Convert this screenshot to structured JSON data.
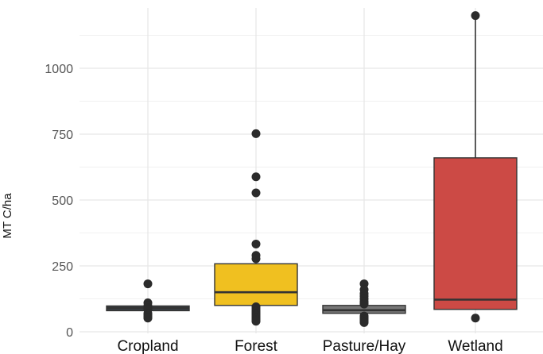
{
  "chart_data": {
    "type": "boxplot",
    "title": "",
    "xlabel": "",
    "ylabel": "MT C/ha",
    "ylim": [
      0,
      1220
    ],
    "yticks": [
      0,
      250,
      500,
      750,
      1000
    ],
    "grid": true,
    "categories": [
      "Cropland",
      "Forest",
      "Pasture/Hay",
      "Wetland"
    ],
    "boxes": [
      {
        "category": "Cropland",
        "color": "#3a3f45",
        "whisker_low": 75,
        "q1": 80,
        "median": 90,
        "q3": 98,
        "whisker_high": 102,
        "outliers": [
          182,
          110,
          100,
          92,
          88,
          85,
          70,
          65,
          60,
          55,
          52
        ]
      },
      {
        "category": "Forest",
        "color": "#f0c020",
        "whisker_low": 100,
        "q1": 100,
        "median": 150,
        "q3": 258,
        "whisker_high": 258,
        "outliers": [
          752,
          588,
          527,
          333,
          290,
          277,
          95,
          88,
          80,
          75,
          70,
          65,
          60,
          55,
          50,
          45,
          42,
          40
        ]
      },
      {
        "category": "Pasture/Hay",
        "color": "#777777",
        "whisker_low": 62,
        "q1": 70,
        "median": 82,
        "q3": 100,
        "whisker_high": 100,
        "outliers": [
          182,
          160,
          145,
          135,
          125,
          115,
          108,
          105,
          60,
          55,
          50,
          45,
          40,
          35
        ]
      },
      {
        "category": "Wetland",
        "color": "#cc4a45",
        "whisker_low": 85,
        "q1": 85,
        "median": 122,
        "q3": 660,
        "whisker_high": 1200,
        "outliers": [
          1200,
          52
        ]
      }
    ]
  }
}
